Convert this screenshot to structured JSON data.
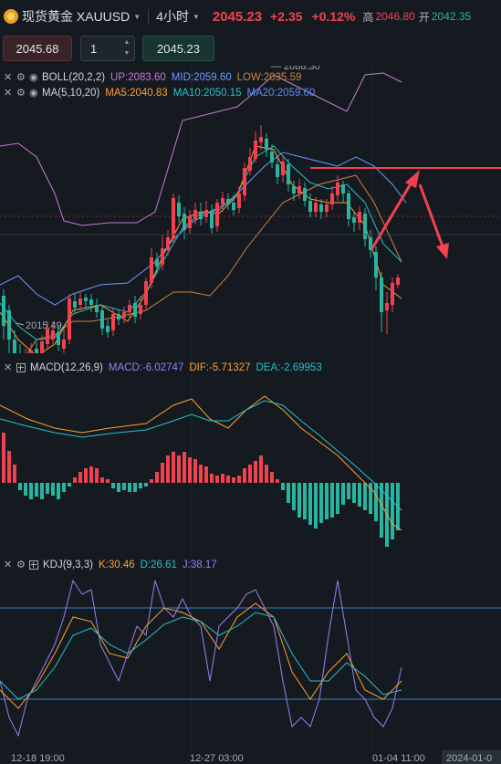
{
  "header": {
    "symbol": "现货黄金 XAUUSD",
    "timeframe": "4小时",
    "price": "2045.23",
    "change": "+2.35",
    "change_pct": "+0.12%",
    "high_label": "高",
    "high_value": "2046.80",
    "open_label": "开",
    "open_value": "2042.35"
  },
  "order": {
    "sell_price": "2045.68",
    "quantity": "1",
    "buy_price": "2045.23"
  },
  "main_chart": {
    "boll": {
      "name": "BOLL(20,2,2)",
      "up": "UP:2083.60",
      "mid": "MID:2059.60",
      "low": "LOW:2035.59"
    },
    "ma": {
      "name": "MA(5,10,20)",
      "ma5": "MA5:2040.83",
      "ma10": "MA10:2050.15",
      "ma20": "MA20:2059.60"
    },
    "high_marker": "2088.30",
    "low_marker": "2015.49"
  },
  "macd": {
    "name": "MACD(12,26,9)",
    "macd": "MACD:-6.02747",
    "dif": "DIF:-5.71327",
    "dea": "DEA:-2.69953"
  },
  "kdj": {
    "name": "KDJ(9,3,3)",
    "k": "K:30.46",
    "d": "D:26.61",
    "j": "J:38.17"
  },
  "time_axis": {
    "t1": "12-18 19:00",
    "t2": "12-27 03:00",
    "t3": "01-04 11:00",
    "t4": "2024-01-0"
  },
  "colors": {
    "up": "#f0424f",
    "down": "#27b5a0",
    "boll_up": "#c77ad8",
    "boll_mid": "#6c9bff",
    "boll_low": "#c7853d",
    "ma5": "#ff9f2e",
    "ma10": "#28c1c9",
    "ma20": "#5a8fff",
    "macd": "#9a7ff0",
    "dif": "#ff9f2e",
    "dea": "#28c1c9",
    "k": "#ff9f2e",
    "d": "#28c1c9",
    "j": "#9a7ff0"
  }
}
